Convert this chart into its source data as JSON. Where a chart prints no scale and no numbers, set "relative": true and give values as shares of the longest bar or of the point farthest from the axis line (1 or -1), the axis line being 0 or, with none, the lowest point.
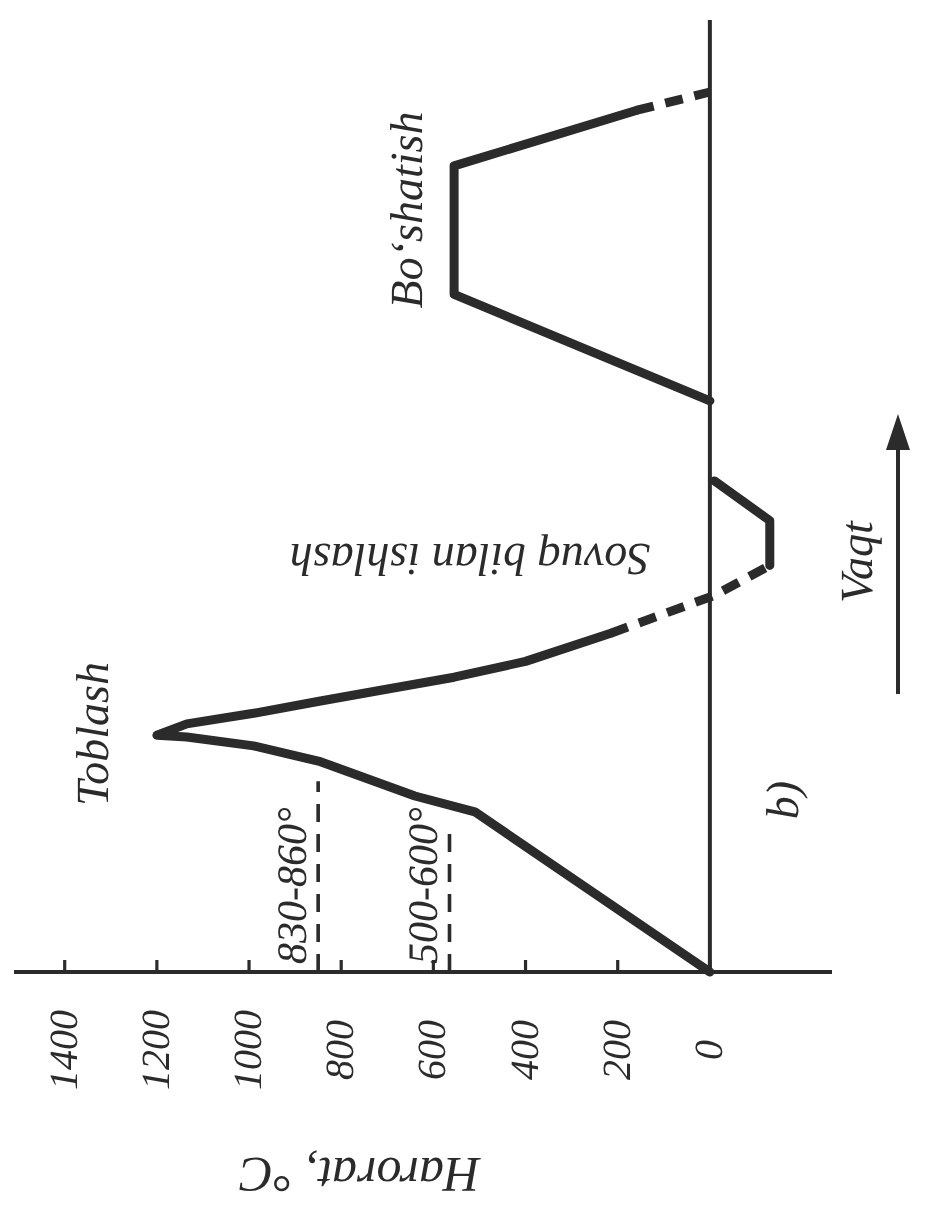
{
  "chart_data": {
    "type": "line",
    "relative": true,
    "xlabel": "Harorat, °C",
    "ylabel": "Vaqt",
    "xlim": [
      1510,
      -265
    ],
    "xticks": [
      1400,
      1200,
      1000,
      800,
      600,
      400,
      200,
      0
    ],
    "series": [
      {
        "color": "#2b2b2b",
        "line_style": "solid",
        "x": [
          0,
          510,
          640,
          845,
          990,
          1135,
          1200,
          1135,
          990,
          845,
          705,
          555,
          400,
          215
        ],
        "values": [
          0,
          0.182,
          0.2,
          0.239,
          0.257,
          0.267,
          0.269,
          0.282,
          0.294,
          0.308,
          0.321,
          0.335,
          0.353,
          0.385
        ]
      },
      {
        "color": "#2b2b2b",
        "line_style": "dashed",
        "x": [
          215,
          -10,
          -130
        ],
        "values": [
          0.385,
          0.428,
          0.462
        ]
      },
      {
        "color": "#2b2b2b",
        "line_style": "solid",
        "x": [
          -130,
          -130,
          -10
        ],
        "values": [
          0.462,
          0.513,
          0.558
        ]
      },
      {
        "color": "#2b2b2b",
        "line_style": "solid",
        "x": [
          0,
          555,
          555,
          160
        ],
        "values": [
          0.649,
          0.77,
          0.916,
          0.979
        ]
      },
      {
        "color": "#2b2b2b",
        "line_style": "dashed",
        "x": [
          160,
          0
        ],
        "values": [
          0.979,
          1
        ]
      }
    ],
    "ref_lines": [
      {
        "axis": "x",
        "value": 850,
        "line_style": "dashed",
        "color": "#2b2b2b"
      },
      {
        "axis": "x",
        "value": 565,
        "line_style": "dashed",
        "color": "#2b2b2b"
      }
    ],
    "annotations": [
      "Toblash",
      "Sovuq bilan ishlash",
      "Bo‘shatish",
      "b)",
      {
        "text": "830-860°",
        "x": 850
      },
      {
        "text": "500-600°",
        "x": 565
      }
    ]
  }
}
